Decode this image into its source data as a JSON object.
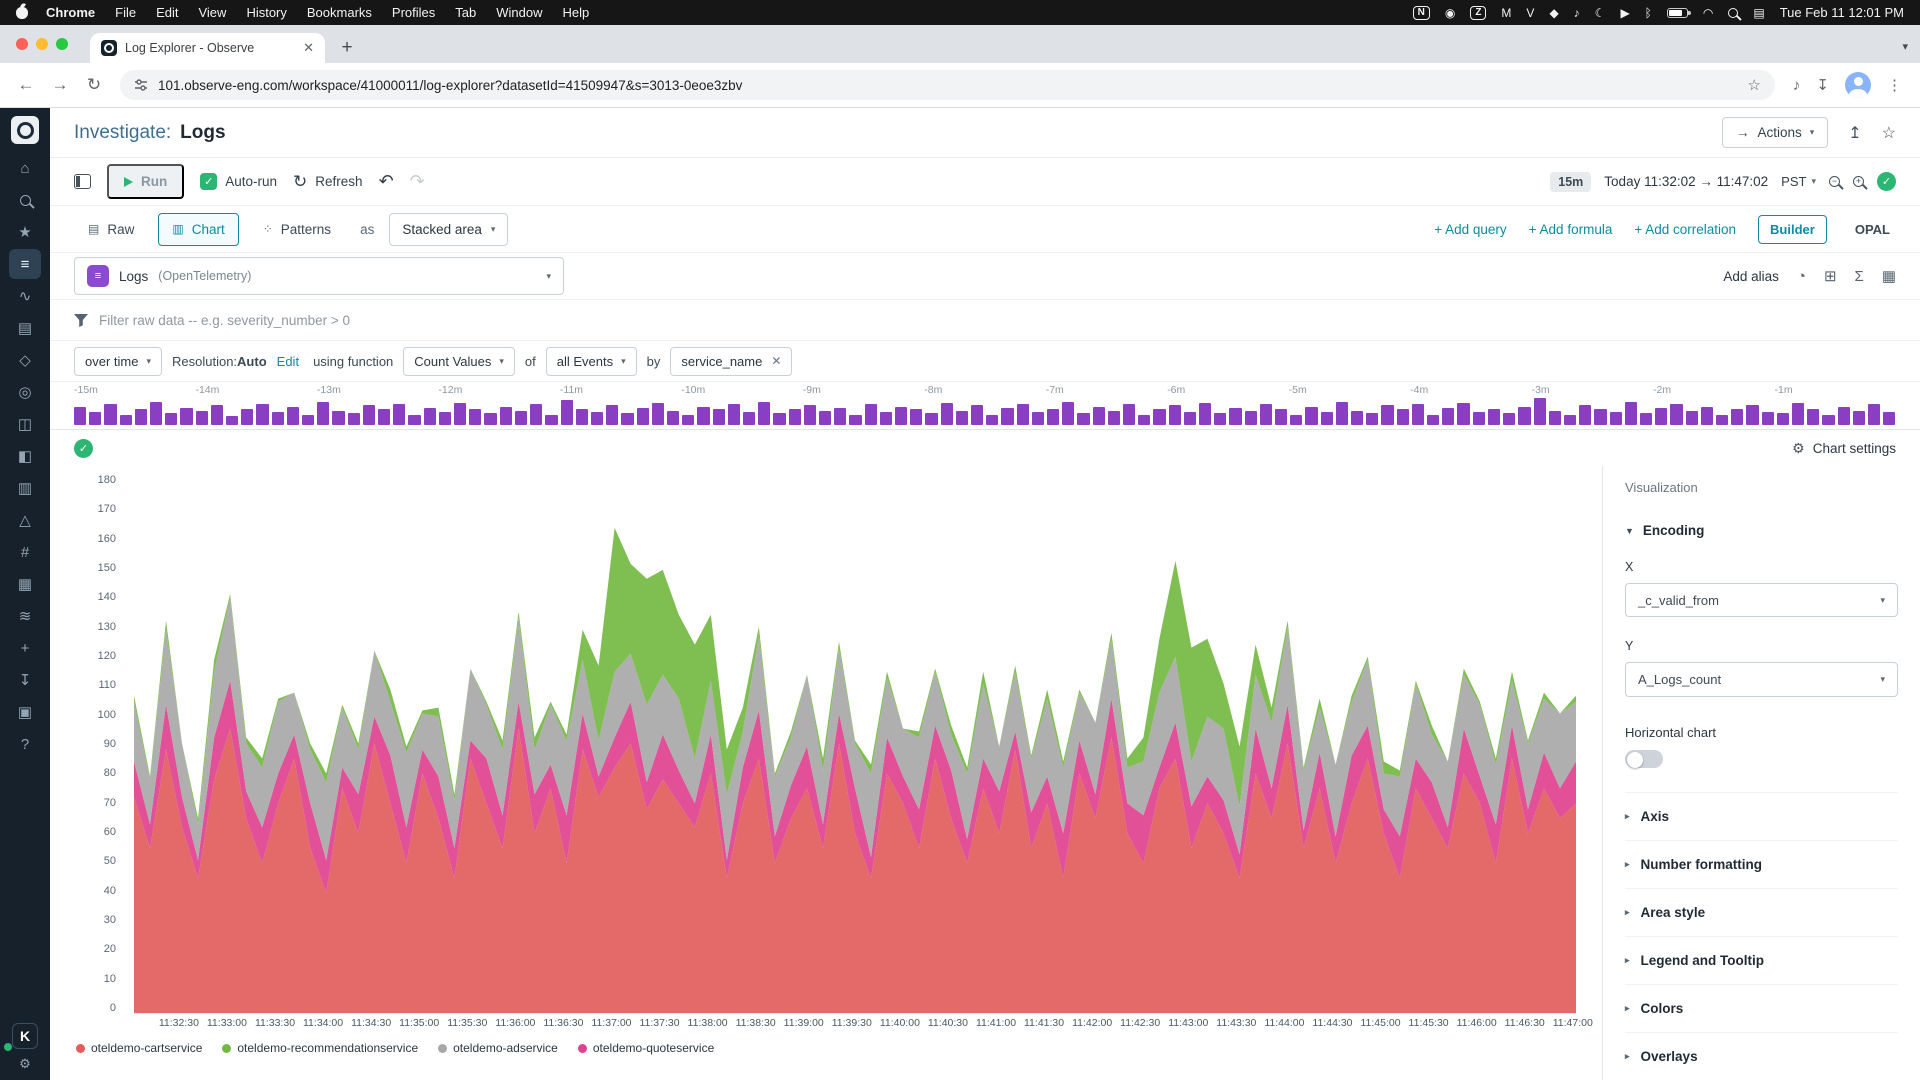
{
  "colors": {
    "accent": "#0d8ba1",
    "green": "#2bb673",
    "purple": "#8a3fc2",
    "sidebar_bg": "#17212b"
  },
  "menubar": {
    "items": [
      "Chrome",
      "File",
      "Edit",
      "View",
      "History",
      "Bookmarks",
      "Profiles",
      "Tab",
      "Window",
      "Help"
    ],
    "status_icons": [
      {
        "name": "notion-icon",
        "glyph": "N",
        "boxed": true
      },
      {
        "name": "screen-record-icon",
        "glyph": "◉"
      },
      {
        "name": "zoom-icon",
        "glyph": "Z",
        "boxed": true
      },
      {
        "name": "app-m-icon",
        "glyph": "M"
      },
      {
        "name": "app-v-icon",
        "glyph": "V"
      },
      {
        "name": "shortcut-icon",
        "glyph": "◆"
      },
      {
        "name": "audio-icon",
        "glyph": "♪"
      },
      {
        "name": "focus-moon-icon",
        "glyph": "☾"
      },
      {
        "name": "screen-play-icon",
        "glyph": "▶"
      },
      {
        "name": "bluetooth-icon",
        "glyph": "ᛒ"
      },
      {
        "name": "battery-icon",
        "cls": "battery"
      },
      {
        "name": "wifi-icon",
        "glyph": "◠"
      },
      {
        "name": "spotlight-icon",
        "cls": "mag"
      },
      {
        "name": "control-center-icon",
        "glyph": "▤"
      }
    ],
    "clock": "Tue Feb 11 12:01 PM"
  },
  "browser": {
    "tab_title": "Log Explorer - Observe",
    "url": "101.observe-eng.com/workspace/41000011/log-explorer?datasetId=41509947&s=3013-0eoe3zbv"
  },
  "sidebar": {
    "items": [
      {
        "name": "home",
        "glyph": "⌂"
      },
      {
        "name": "search",
        "cls": "mag"
      },
      {
        "name": "favorites",
        "glyph": "★"
      },
      {
        "name": "log-explorer",
        "glyph": "≡",
        "selected": true
      },
      {
        "name": "metrics",
        "glyph": "∿"
      },
      {
        "name": "worksheets",
        "glyph": "▤"
      },
      {
        "name": "resources",
        "glyph": "◇"
      },
      {
        "name": "integrations",
        "glyph": "◎"
      },
      {
        "name": "datastreams",
        "glyph": "◫"
      },
      {
        "name": "dashboards",
        "glyph": "◧"
      },
      {
        "name": "monitors",
        "glyph": "▥"
      },
      {
        "name": "alerts",
        "glyph": "△"
      },
      {
        "name": "explore",
        "glyph": "#"
      },
      {
        "name": "tables",
        "glyph": "▦"
      },
      {
        "name": "pipelines",
        "glyph": "≋"
      },
      {
        "name": "add",
        "glyph": "+"
      },
      {
        "name": "install",
        "glyph": "↧"
      },
      {
        "name": "stacks",
        "glyph": "▣"
      },
      {
        "name": "help",
        "glyph": "?"
      }
    ],
    "user_initial": "K"
  },
  "header": {
    "title_prefix": "Investigate:",
    "title": "Logs",
    "actions_label": "Actions"
  },
  "toolbar": {
    "run": "Run",
    "autorun": "Auto-run",
    "refresh": "Refresh",
    "range_badge": "15m",
    "range_text": "Today 11:32:02 → 11:47:02",
    "tz": "PST"
  },
  "querybar": {
    "tabs": [
      "Raw",
      "Chart",
      "Patterns"
    ],
    "as_label": "as",
    "viz_type": "Stacked area",
    "links": [
      "+ Add query",
      "+ Add formula",
      "+ Add correlation"
    ],
    "mode_builder": "Builder",
    "mode_opal": "OPAL"
  },
  "dataset": {
    "name": "Logs",
    "suffix": "(OpenTelemetry)",
    "add_alias": "Add alias"
  },
  "filter": {
    "placeholder": "Filter raw data -- e.g. severity_number > 0"
  },
  "aggregation": {
    "over_time": "over time",
    "resolution_label": "Resolution:",
    "resolution_value": "Auto",
    "edit": "Edit",
    "using_function": "using function",
    "function": "Count Values",
    "of": "of",
    "events": "all Events",
    "by": "by",
    "group_chip": "service_name"
  },
  "minimap": {
    "color": "#8a3fc2",
    "ticks": [
      "-15m",
      "-14m",
      "-13m",
      "-12m",
      "-11m",
      "-10m",
      "-9m",
      "-8m",
      "-7m",
      "-6m",
      "-5m",
      "-4m",
      "-3m",
      "-2m",
      "-1m"
    ],
    "bars": [
      14,
      10,
      16,
      8,
      12,
      18,
      9,
      13,
      11,
      15,
      7,
      12,
      16,
      10,
      14,
      8,
      18,
      11,
      9,
      15,
      12,
      16,
      8,
      13,
      10,
      17,
      12,
      9,
      14,
      11,
      16,
      8,
      19,
      12,
      10,
      15,
      9,
      13,
      17,
      11,
      8,
      14,
      12,
      16,
      10,
      18,
      9,
      12,
      15,
      11,
      13,
      8,
      16,
      10,
      14,
      12,
      9,
      17,
      11,
      15,
      8,
      13,
      16,
      10,
      12,
      18,
      9,
      14,
      11,
      16,
      8,
      12,
      15,
      10,
      17,
      9,
      13,
      11,
      16,
      12,
      8,
      14,
      10,
      18,
      11,
      9,
      15,
      12,
      16,
      8,
      13,
      17,
      10,
      12,
      9,
      14,
      21,
      11,
      8,
      15,
      12,
      10,
      18,
      9,
      13,
      16,
      11,
      14,
      8,
      12,
      15,
      10,
      9,
      17,
      12,
      8,
      14,
      11,
      16,
      10
    ]
  },
  "status": {
    "chart_settings": "Chart settings"
  },
  "chart_data": {
    "type": "area",
    "stacked": true,
    "ylim": [
      0,
      180
    ],
    "y_step": 10,
    "grid": false,
    "legend_position": "bottom",
    "x_window": {
      "start": "11:32:02",
      "end": "11:47:02",
      "duration_s": 900,
      "tick_first_offset_s": 28,
      "tick_step_s": 30
    },
    "x_tick_labels": [
      "11:32:30",
      "11:33:00",
      "11:33:30",
      "11:34:00",
      "11:34:30",
      "11:35:00",
      "11:35:30",
      "11:36:00",
      "11:36:30",
      "11:37:00",
      "11:37:30",
      "11:38:00",
      "11:38:30",
      "11:39:00",
      "11:39:30",
      "11:40:00",
      "11:40:30",
      "11:41:00",
      "11:41:30",
      "11:42:00",
      "11:42:30",
      "11:43:00",
      "11:43:30",
      "11:44:00",
      "11:44:30",
      "11:45:00",
      "11:45:30",
      "11:46:00",
      "11:46:30",
      "11:47:00"
    ],
    "series": [
      {
        "name": "oteldemo-cartservice",
        "color": "#e25c5c",
        "values": [
          72,
          55,
          88,
          62,
          45,
          78,
          95,
          65,
          50,
          70,
          85,
          55,
          40,
          75,
          60,
          90,
          70,
          50,
          80,
          65,
          45,
          85,
          70,
          55,
          95,
          60,
          75,
          50,
          88,
          72,
          82,
          90,
          68,
          78,
          70,
          62,
          80,
          45,
          70,
          85,
          50,
          65,
          75,
          55,
          90,
          60,
          45,
          80,
          70,
          55,
          85,
          65,
          50,
          75,
          60,
          88,
          55,
          70,
          45,
          80,
          65,
          92,
          60,
          50,
          75,
          85,
          55,
          70,
          60,
          45,
          80,
          65,
          90,
          55,
          75,
          50,
          70,
          85,
          60,
          45,
          75,
          65,
          55,
          80,
          70,
          50,
          85,
          60,
          75,
          65,
          70
        ]
      },
      {
        "name": "oteldemo-quoteservice",
        "color": "#e0418f",
        "values": [
          12,
          8,
          15,
          10,
          6,
          14,
          16,
          9,
          12,
          10,
          8,
          15,
          11,
          7,
          13,
          9,
          16,
          12,
          8,
          14,
          10,
          6,
          15,
          11,
          9,
          13,
          8,
          16,
          12,
          7,
          10,
          14,
          9,
          15,
          11,
          8,
          13,
          6,
          12,
          16,
          9,
          11,
          14,
          8,
          10,
          15,
          7,
          12,
          9,
          13,
          11,
          16,
          8,
          10,
          14,
          6,
          12,
          9,
          15,
          11,
          8,
          13,
          10,
          16,
          7,
          12,
          14,
          9,
          11,
          8,
          15,
          10,
          13,
          6,
          12,
          9,
          16,
          11,
          8,
          14,
          10,
          12,
          7,
          15,
          9,
          13,
          11,
          8,
          12,
          10,
          14
        ]
      },
      {
        "name": "oteldemo-adservice",
        "color": "#a8a8a8",
        "values": [
          20,
          15,
          25,
          18,
          12,
          22,
          28,
          16,
          20,
          24,
          14,
          18,
          26,
          20,
          15,
          22,
          18,
          25,
          12,
          20,
          16,
          24,
          18,
          22,
          28,
          15,
          20,
          25,
          18,
          12,
          22,
          16,
          26,
          20,
          24,
          15,
          18,
          22,
          12,
          25,
          20,
          16,
          24,
          18,
          22,
          15,
          28,
          20,
          16,
          24,
          18,
          12,
          22,
          25,
          15,
          20,
          18,
          26,
          22,
          16,
          24,
          20,
          12,
          18,
          25,
          22,
          15,
          20,
          24,
          16,
          18,
          22,
          26,
          20,
          15,
          24,
          18,
          22,
          12,
          20,
          25,
          16,
          22,
          18,
          24,
          20,
          15,
          22,
          18,
          25,
          20
        ]
      },
      {
        "name": "oteldemo-recommendationservice",
        "color": "#74b842",
        "values": [
          2,
          1,
          3,
          0,
          2,
          4,
          1,
          2,
          3,
          1,
          0,
          2,
          3,
          1,
          2,
          0,
          4,
          2,
          1,
          3,
          2,
          0,
          1,
          3,
          2,
          4,
          1,
          2,
          10,
          25,
          48,
          30,
          42,
          35,
          28,
          38,
          22,
          15,
          8,
          3,
          1,
          2,
          0,
          4,
          2,
          1,
          3,
          2,
          0,
          2,
          1,
          3,
          2,
          4,
          0,
          2,
          1,
          3,
          2,
          1,
          0,
          2,
          3,
          8,
          18,
          32,
          38,
          26,
          15,
          20,
          10,
          5,
          2,
          1,
          3,
          0,
          2,
          1,
          4,
          2,
          1,
          3,
          0,
          2,
          1,
          2,
          3,
          1,
          2,
          0,
          2
        ]
      }
    ],
    "legend_order": [
      "oteldemo-cartservice",
      "oteldemo-recommendationservice",
      "oteldemo-adservice",
      "oteldemo-quoteservice"
    ]
  },
  "viz_panel": {
    "title": "Visualization",
    "encoding": "Encoding",
    "x_label": "X",
    "x_value": "_c_valid_from",
    "y_label": "Y",
    "y_value": "A_Logs_count",
    "horizontal": "Horizontal chart",
    "sections": [
      "Axis",
      "Number formatting",
      "Area style",
      "Legend and Tooltip",
      "Colors",
      "Overlays"
    ]
  }
}
